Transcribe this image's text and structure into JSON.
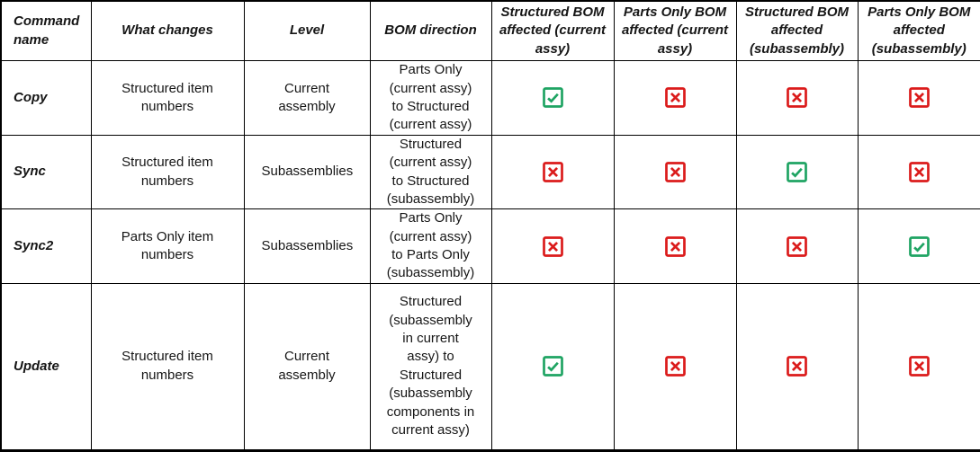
{
  "colors": {
    "check_green": "#1FA463",
    "cross_red": "#DB1B1B",
    "grid_black": "#000000",
    "background": "#FFFFFF",
    "text": "#161616"
  },
  "table": {
    "headers": [
      "Command name",
      "What changes",
      "Level",
      "BOM direction",
      "Structured BOM affected (current assy)",
      "Parts Only BOM affected (current assy)",
      "Structured BOM affected (subassembly)",
      "Parts Only BOM affected (subassembly)"
    ],
    "rows": [
      {
        "command": "Copy",
        "what_changes": "Structured item numbers",
        "level": "Current assembly",
        "bom_direction": "Parts Only (current assy) to Structured (current assy)",
        "affected": {
          "structured_current_assy": "yes",
          "parts_only_current_assy": "no",
          "structured_subassembly": "no",
          "parts_only_subassembly": "no"
        }
      },
      {
        "command": "Sync",
        "what_changes": "Structured item numbers",
        "level": "Subassemblies",
        "bom_direction": "Structured (current assy) to Structured (subassembly)",
        "affected": {
          "structured_current_assy": "no",
          "parts_only_current_assy": "no",
          "structured_subassembly": "yes",
          "parts_only_subassembly": "no"
        }
      },
      {
        "command": "Sync2",
        "what_changes": "Parts Only item numbers",
        "level": "Subassemblies",
        "bom_direction": "Parts Only (current assy) to Parts Only (subassembly)",
        "affected": {
          "structured_current_assy": "no",
          "parts_only_current_assy": "no",
          "structured_subassembly": "no",
          "parts_only_subassembly": "yes"
        }
      },
      {
        "command": "Update",
        "what_changes": "Structured item numbers",
        "level": "Current assembly",
        "bom_direction": "Structured (subassembly in current assy) to Structured (subassembly components in current assy)",
        "affected": {
          "structured_current_assy": "yes",
          "parts_only_current_assy": "no",
          "structured_subassembly": "no",
          "parts_only_subassembly": "no"
        }
      }
    ]
  },
  "icons": {
    "yes": "checked-box-icon",
    "no": "crossed-box-icon"
  }
}
